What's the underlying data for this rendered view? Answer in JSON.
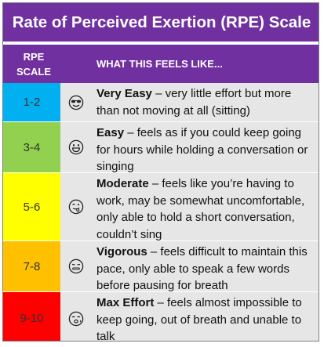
{
  "title": "Rate of Perceived Exertion (RPE) Scale",
  "header": {
    "scale_label": "RPE SCALE",
    "scale_line1": "RPE",
    "scale_line2": "SCALE",
    "description_label": "WHAT THIS FEELS LIKE..."
  },
  "rows": [
    {
      "scale": "1-2",
      "color": "#00b0f0",
      "icon": "cool-sunglasses-face-icon",
      "level": "Very Easy",
      "text": " – very little effort but more than not moving at all (sitting)"
    },
    {
      "scale": "3-4",
      "color": "#92d050",
      "icon": "grinning-face-icon",
      "level": "Easy",
      "text": " – feels as if you could keep going for hours while holding a conversation or singing"
    },
    {
      "scale": "5-6",
      "color": "#ffff00",
      "icon": "tongue-out-face-icon",
      "level": "Moderate",
      "text": " – feels like you’re having to work, may be somewhat uncomfortable, only able to hold a short conversation, couldn’t sing"
    },
    {
      "scale": "7-8",
      "color": "#ffc000",
      "icon": "straining-face-icon",
      "level": "Vigorous",
      "text": " – feels difficult to maintain this pace, only able to speak a few words before pausing for breath"
    },
    {
      "scale": "9-10",
      "color": "#ff0000",
      "icon": "exhausted-face-icon",
      "level": "Max Effort",
      "text": " – feels almost impossible to keep going, out of breath and unable to talk"
    }
  ]
}
